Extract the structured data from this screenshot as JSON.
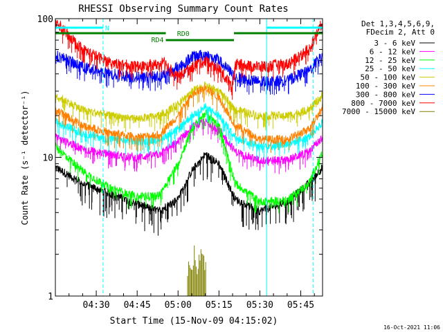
{
  "chart_data": {
    "type": "line",
    "title": "RHESSI Observing Summary Count Rates",
    "xlabel": "Start Time (15-Nov-09 04:15:02)",
    "ylabel": "Count Rate (s⁻¹ detector⁻¹)",
    "yscale": "log",
    "ylim": [
      1,
      100
    ],
    "xlim_minutes": [
      0,
      98
    ],
    "y_ticks": [
      {
        "value": 1,
        "label": "1"
      },
      {
        "value": 10,
        "label": "10"
      },
      {
        "value": 100,
        "label": "100"
      }
    ],
    "x_ticks": [
      {
        "minute": 15,
        "label": "04:30"
      },
      {
        "minute": 30,
        "label": "04:45"
      },
      {
        "minute": 45,
        "label": "05:00"
      },
      {
        "minute": 60,
        "label": "05:15"
      },
      {
        "minute": 75,
        "label": "05:30"
      },
      {
        "minute": 90,
        "label": "05:45"
      }
    ],
    "legend_header": [
      "Det 1,3,4,5,6,9,",
      "FDecim 2, Att 0"
    ],
    "legend_position": "right",
    "series": [
      {
        "name": "3 - 6 keV",
        "color": "#000000",
        "minute": [
          0,
          10,
          20,
          30,
          38,
          45,
          50,
          55,
          60,
          66,
          75,
          85,
          93,
          98
        ],
        "value": [
          8.5,
          6.5,
          5.5,
          4.6,
          4.1,
          5.0,
          8.0,
          10.5,
          9.0,
          5.0,
          4.1,
          4.8,
          6.5,
          8.5
        ]
      },
      {
        "name": "6 - 12 keV",
        "color": "#ff00ff",
        "minute": [
          0,
          10,
          20,
          30,
          38,
          45,
          50,
          55,
          60,
          66,
          75,
          85,
          93,
          98
        ],
        "value": [
          14,
          11.5,
          10.5,
          10.0,
          10.5,
          13,
          16.5,
          18,
          16,
          11,
          9.5,
          9.6,
          11,
          14
        ]
      },
      {
        "name": "12 - 25 keV",
        "color": "#00ff00",
        "minute": [
          0,
          10,
          20,
          30,
          38,
          45,
          50,
          55,
          60,
          66,
          75,
          85,
          93,
          98
        ],
        "value": [
          12,
          8,
          6,
          5.2,
          5.3,
          9,
          16,
          21,
          17,
          6.5,
          4.8,
          4.9,
          6.5,
          11
        ]
      },
      {
        "name": "25 - 50 keV",
        "color": "#00ffff",
        "minute": [
          0,
          10,
          20,
          30,
          38,
          45,
          50,
          55,
          60,
          66,
          75,
          85,
          93,
          98
        ],
        "value": [
          18,
          15,
          13.5,
          13,
          13.5,
          16,
          20,
          23,
          20,
          14,
          12,
          12.5,
          14,
          18
        ]
      },
      {
        "name": "50 - 100 keV",
        "color": "#cccc00",
        "minute": [
          0,
          10,
          20,
          30,
          38,
          45,
          50,
          55,
          60,
          66,
          75,
          85,
          93,
          98
        ],
        "value": [
          28,
          22,
          20,
          19,
          20,
          24,
          30,
          33,
          30,
          22,
          20,
          20,
          22,
          28
        ]
      },
      {
        "name": "100 - 300 keV",
        "color": "#ff8000",
        "minute": [
          0,
          10,
          20,
          30,
          38,
          45,
          50,
          55,
          60,
          66,
          75,
          85,
          93,
          98
        ],
        "value": [
          22,
          17,
          15,
          14,
          14.5,
          20,
          28,
          32,
          27,
          17,
          13.5,
          13.5,
          16,
          23
        ]
      },
      {
        "name": "300 - 800 keV",
        "color": "#0000ff",
        "minute": [
          0,
          10,
          20,
          30,
          38,
          45,
          50,
          55,
          60,
          66,
          75,
          85,
          93,
          98
        ],
        "value": [
          55,
          45,
          40,
          38,
          38,
          45,
          53,
          55,
          50,
          38,
          35,
          36,
          42,
          55
        ]
      },
      {
        "name": "800 - 7000 keV",
        "color": "#ff0000",
        "minute": [
          0,
          10,
          20,
          30,
          38,
          40,
          45,
          50,
          55,
          60,
          65,
          66,
          75,
          85,
          93,
          98
        ],
        "value": [
          95,
          60,
          48,
          45,
          47,
          48,
          38,
          45,
          50,
          43,
          33,
          47,
          45,
          47,
          60,
          95
        ]
      },
      {
        "name": "7000 - 15000 keV",
        "color": "#808000",
        "minute": [
          48.5,
          49,
          50,
          51,
          52,
          53,
          54,
          55,
          55.5
        ],
        "value": [
          1.3,
          1.9,
          1.5,
          1.9,
          1.2,
          1.8,
          1.9,
          1.4,
          1.6
        ]
      }
    ],
    "markers": {
      "solid_lines_minutes": [
        0,
        77.5
      ],
      "dashed_lines_minutes": [
        17.5,
        94.5
      ],
      "night_bars": [
        {
          "start": 0,
          "end": 17.5
        },
        {
          "start": 77.5,
          "end": 98
        }
      ],
      "night_label": "N",
      "attenuator_bars": [
        {
          "label": "",
          "start": 0,
          "end": 40.5,
          "level": "upper"
        },
        {
          "label": "RD4",
          "start": 40.5,
          "end": 41.5,
          "level": "lower"
        },
        {
          "label": "RD0",
          "start": 41,
          "end": 65.5,
          "level": "lower"
        },
        {
          "label": "",
          "start": 65.5,
          "end": 98,
          "level": "upper"
        }
      ]
    },
    "grid": false
  },
  "footer": {
    "timestamp": "16-Oct-2021 11:06"
  },
  "colors": {
    "axes": "#000000",
    "night_bar": "#00ffff",
    "attenuator_bar": "#008000",
    "background": "#ffffff"
  }
}
